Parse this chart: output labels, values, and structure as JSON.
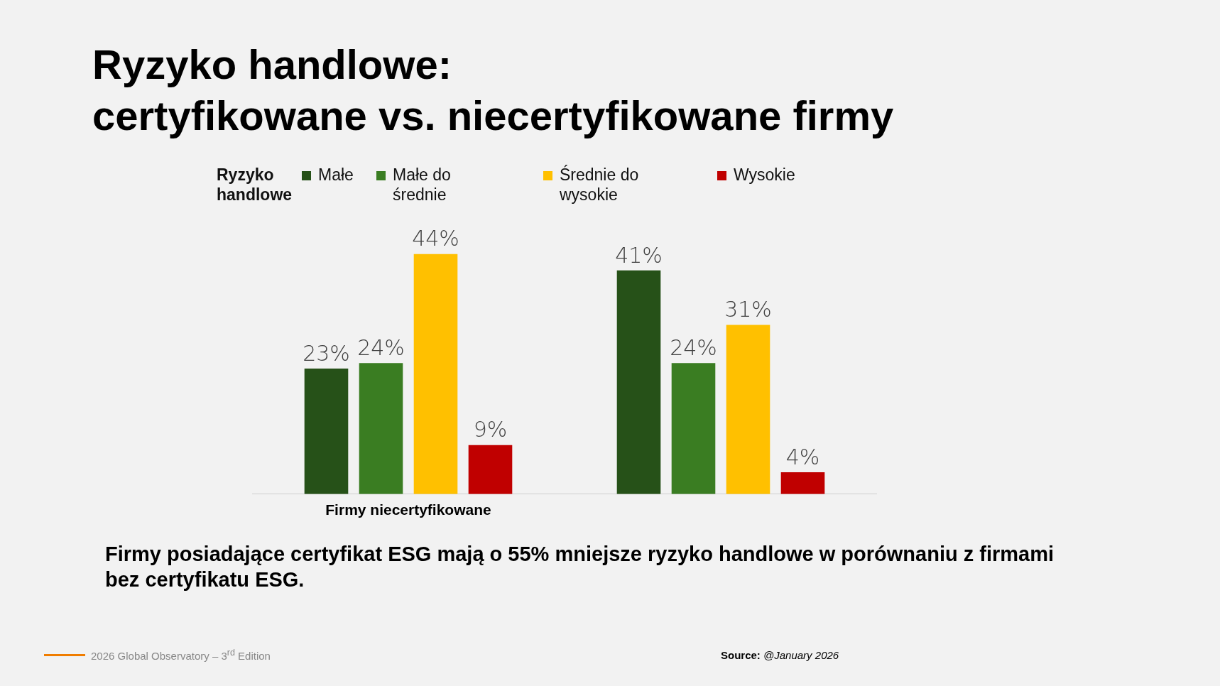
{
  "chart_data": {
    "type": "bar",
    "title": "Ryzyko handlowe:\ncertyfikowane vs. niecertyfikowane firmy",
    "legend_title": "Ryzyko handlowe",
    "legend": "top",
    "tick_labels": "x",
    "categories": [
      "Firmy niecertyfikowane",
      null
    ],
    "series": [
      {
        "name": "Małe",
        "color": "#265118",
        "values": [
          23,
          41
        ],
        "value_labels": [
          "23%",
          "41%"
        ]
      },
      {
        "name": "Małe do średnie",
        "color": "#3a7d22",
        "values": [
          24,
          24
        ],
        "value_labels": [
          "24%",
          "24%"
        ]
      },
      {
        "name": "Średnie do wysokie",
        "color": "#ffc000",
        "values": [
          44,
          31
        ],
        "value_labels": [
          "44%",
          "31%"
        ]
      },
      {
        "name": "Wysokie",
        "color": "#c00000",
        "values": [
          9,
          4
        ],
        "value_labels": [
          "9%",
          "4%"
        ]
      }
    ],
    "annotations": [
      "Firmy posiadające certyfikat ESG mają o 55% mniejsze ryzyko handlowe w porównaniu z firmami bez certyfikatu ESG.",
      "2026 Global Observatory – 3$^{rd}$ Edition",
      "Source: @January 2026"
    ]
  }
}
